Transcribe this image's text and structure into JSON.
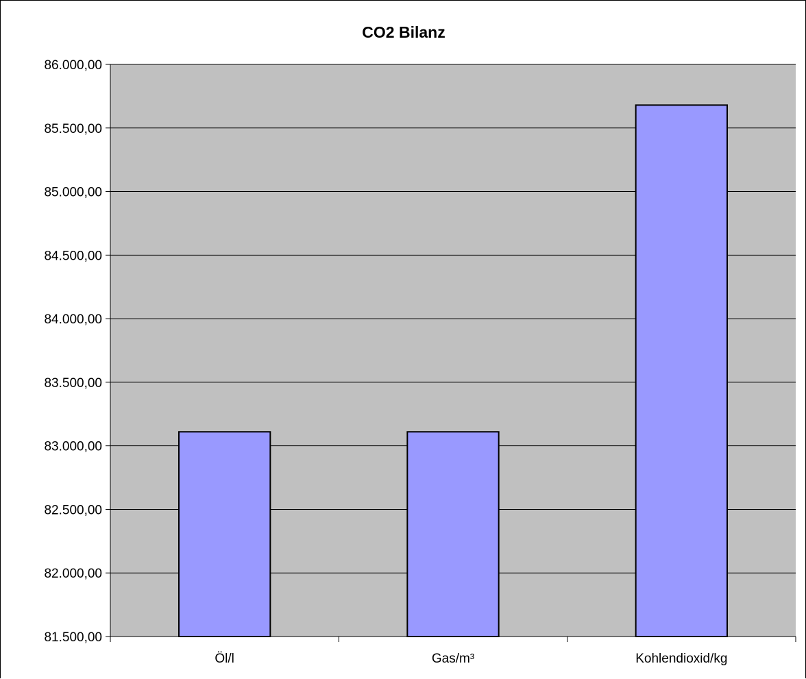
{
  "chart_data": {
    "type": "bar",
    "title": "CO2 Bilanz",
    "xlabel": "",
    "ylabel": "",
    "categories": [
      "Öl/l",
      "Gas/m³",
      "Kohlendioxid/kg"
    ],
    "values": [
      83110,
      83110,
      85680
    ],
    "ylim": [
      81500,
      86000
    ],
    "yticks": [
      81500,
      82000,
      82500,
      83000,
      83500,
      84000,
      84500,
      85000,
      85500,
      86000
    ],
    "ytick_labels": [
      "81.500,00",
      "82.000,00",
      "82.500,00",
      "83.000,00",
      "83.500,00",
      "84.000,00",
      "84.500,00",
      "85.000,00",
      "85.500,00",
      "86.000,00"
    ],
    "grid": true,
    "legend": "none",
    "colors": {
      "bar_fill": "#9999ff",
      "bar_stroke": "#000000",
      "plot_background": "#c0c0c0",
      "gridline": "#000000",
      "page_background": "#ffffff"
    }
  }
}
